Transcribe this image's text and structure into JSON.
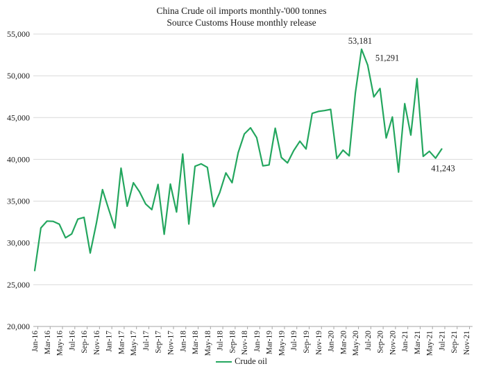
{
  "chart": {
    "title": "China Crude oil imports monthly-'000 tonnes",
    "subtitle": "Source Customs House monthly release",
    "legend_label": "Crude oil",
    "line_color": "#23a65e",
    "grid_color": "#d9d9d9",
    "axis_color": "#a6a6a6",
    "text_color": "#1a1a1a"
  },
  "chart_data": {
    "type": "line",
    "title": "China Crude oil imports monthly-'000 tonnes",
    "subtitle": "Source Customs House monthly release",
    "legend": [
      "Crude oil"
    ],
    "legend_position": "bottom",
    "grid": "horizontal",
    "ylim": [
      20000,
      55000
    ],
    "y_tick_step": 5000,
    "y_tick_labels": [
      "20,000",
      "25,000",
      "30,000",
      "35,000",
      "40,000",
      "45,000",
      "50,000",
      "55,000"
    ],
    "x_tick_labels": [
      "Jan-16",
      "Mar-16",
      "May-16",
      "Jul-16",
      "Sep-16",
      "Nov-16",
      "Jan-17",
      "Mar-17",
      "May-17",
      "Jul-17",
      "Sep-17",
      "Nov-17",
      "Jan-18",
      "Mar-18",
      "May-18",
      "Jul-18",
      "Sep-18",
      "Nov-18",
      "Jan-19",
      "Mar-19",
      "May-19",
      "Jul-19",
      "Sep-19",
      "Nov-19",
      "Jan-20",
      "Mar-20",
      "May-20",
      "Jul-20",
      "Sep-20",
      "Nov-20",
      "Jan-21",
      "Mar-21",
      "May-21",
      "Jul-21",
      "Sep-21",
      "Nov-21"
    ],
    "x": [
      "Jan-16",
      "Feb-16",
      "Mar-16",
      "Apr-16",
      "May-16",
      "Jun-16",
      "Jul-16",
      "Aug-16",
      "Sep-16",
      "Oct-16",
      "Nov-16",
      "Dec-16",
      "Jan-17",
      "Feb-17",
      "Mar-17",
      "Apr-17",
      "May-17",
      "Jun-17",
      "Jul-17",
      "Aug-17",
      "Sep-17",
      "Oct-17",
      "Nov-17",
      "Dec-17",
      "Jan-18",
      "Feb-18",
      "Mar-18",
      "Apr-18",
      "May-18",
      "Jun-18",
      "Jul-18",
      "Aug-18",
      "Sep-18",
      "Oct-18",
      "Nov-18",
      "Dec-18",
      "Jan-19",
      "Feb-19",
      "Mar-19",
      "Apr-19",
      "May-19",
      "Jun-19",
      "Jul-19",
      "Aug-19",
      "Sep-19",
      "Oct-19",
      "Nov-19",
      "Dec-19",
      "Jan-20",
      "Feb-20",
      "Mar-20",
      "Apr-20",
      "May-20",
      "Jun-20",
      "Jul-20",
      "Aug-20",
      "Sep-20",
      "Oct-20",
      "Nov-20",
      "Dec-20",
      "Jan-21",
      "Feb-21",
      "Mar-21",
      "Apr-21",
      "May-21",
      "Jun-21",
      "Jul-21"
    ],
    "series": [
      {
        "name": "Crude oil",
        "values": [
          26690,
          31800,
          32610,
          32580,
          32240,
          30620,
          31070,
          32850,
          33060,
          28790,
          32350,
          36380,
          34030,
          31780,
          38950,
          34390,
          37200,
          36110,
          34660,
          33980,
          37000,
          31030,
          37040,
          33700,
          40640,
          32260,
          39170,
          39460,
          39050,
          34350,
          36020,
          38380,
          37200,
          40800,
          43040,
          43780,
          42600,
          39220,
          39340,
          43730,
          40230,
          39580,
          41040,
          42170,
          41240,
          45510,
          45740,
          45840,
          45980,
          40100,
          41100,
          40430,
          47970,
          53181,
          51291,
          47480,
          48480,
          42560,
          45070,
          38470,
          46670,
          42900,
          49660,
          40360,
          40970,
          40140,
          41243
        ]
      }
    ],
    "annotations": [
      {
        "text": "53,181",
        "x": "Jun-20",
        "index": 53,
        "placement": "above"
      },
      {
        "text": "51,291",
        "x": "Jul-20",
        "index": 54,
        "placement": "right"
      },
      {
        "text": "41,243",
        "x": "Jul-21",
        "index": 66,
        "placement": "below"
      }
    ]
  }
}
